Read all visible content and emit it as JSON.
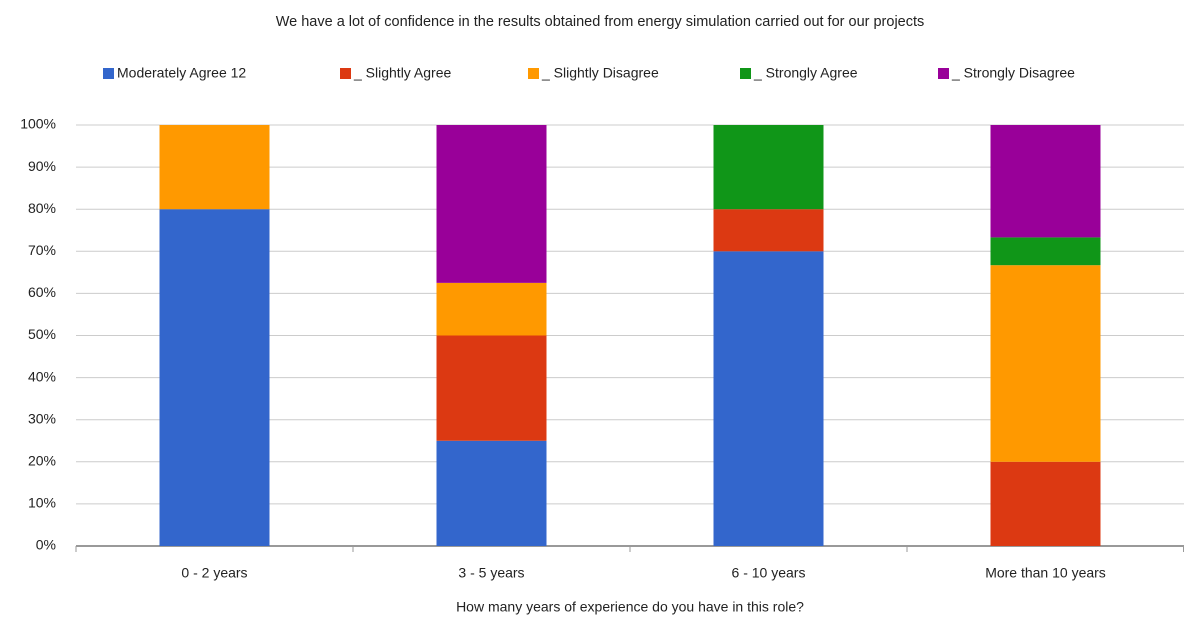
{
  "chart_data": {
    "type": "stacked_bar",
    "title": "We have a lot of confidence in the results obtained from energy simulation carried out for our projects",
    "x_label": "How many years of experience do you have in this role?",
    "categories": [
      "0 - 2 years",
      "3 - 5 years",
      "6 - 10 years",
      "More than 10 years"
    ],
    "series": [
      {
        "name": "Moderately Agree 12",
        "color": "#3366cc",
        "values": [
          80,
          25,
          70,
          0
        ]
      },
      {
        "name": "_ Slightly Agree",
        "color": "#dc3912",
        "values": [
          0,
          25,
          10,
          20
        ]
      },
      {
        "name": "_ Slightly Disagree",
        "color": "#ff9900",
        "values": [
          20,
          12.5,
          0,
          46.7
        ]
      },
      {
        "name": "_ Strongly Agree",
        "color": "#109618",
        "values": [
          0,
          0,
          20,
          6.6
        ]
      },
      {
        "name": "_ Strongly Disagree",
        "color": "#990099",
        "values": [
          0,
          37.5,
          0,
          26.7
        ]
      }
    ],
    "ylim": [
      0,
      100
    ],
    "yticks": [
      {
        "value": 0,
        "label": "0%"
      },
      {
        "value": 10,
        "label": "10%"
      },
      {
        "value": 20,
        "label": "20%"
      },
      {
        "value": 30,
        "label": "30%"
      },
      {
        "value": 40,
        "label": "40%"
      },
      {
        "value": 50,
        "label": "50%"
      },
      {
        "value": 60,
        "label": "60%"
      },
      {
        "value": 70,
        "label": "70%"
      },
      {
        "value": 80,
        "label": "80%"
      },
      {
        "value": 90,
        "label": "90%"
      },
      {
        "value": 100,
        "label": "100%"
      }
    ],
    "grid": true,
    "legend": "top"
  }
}
